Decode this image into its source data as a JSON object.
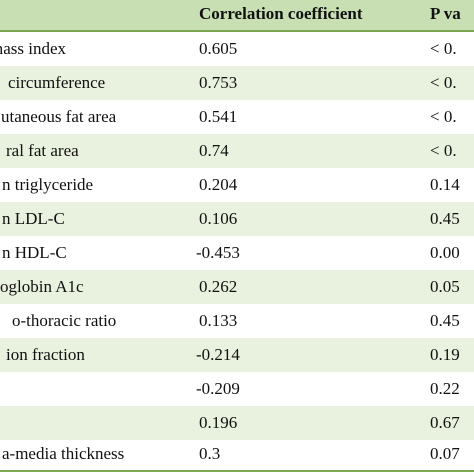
{
  "header": {
    "col_correlation": "Correlation coefficient",
    "col_pvalue": "P va"
  },
  "rows": [
    {
      "variable": "mass index",
      "coef": "0.605",
      "p": "< 0."
    },
    {
      "variable": "circumference",
      "coef": "0.753",
      "p": "< 0."
    },
    {
      "variable": "utaneous fat area",
      "coef": "0.541",
      "p": "< 0."
    },
    {
      "variable": "ral fat area",
      "coef": "0.74",
      "p": "< 0."
    },
    {
      "variable": "n triglyceride",
      "coef": "0.204",
      "p": "0.14"
    },
    {
      "variable": "n LDL-C",
      "coef": "0.106",
      "p": "0.45"
    },
    {
      "variable": "n HDL-C",
      "coef": "-0.453",
      "p": "0.00"
    },
    {
      "variable": "oglobin A1c",
      "coef": "0.262",
      "p": "0.05"
    },
    {
      "variable": "o-thoracic ratio",
      "coef": "0.133",
      "p": "0.45"
    },
    {
      "variable": "ion fraction",
      "coef": "-0.214",
      "p": "0.19"
    },
    {
      "variable": "",
      "coef": "-0.209",
      "p": "0.22"
    },
    {
      "variable": "",
      "coef": "0.196",
      "p": "0.67"
    },
    {
      "variable": "a-media thickness",
      "coef": "0.3",
      "p": "0.07"
    }
  ],
  "colors": {
    "header_bg": "#c8dfb3",
    "alt_row_bg": "#e9f1df",
    "rule": "#7aa84e"
  }
}
